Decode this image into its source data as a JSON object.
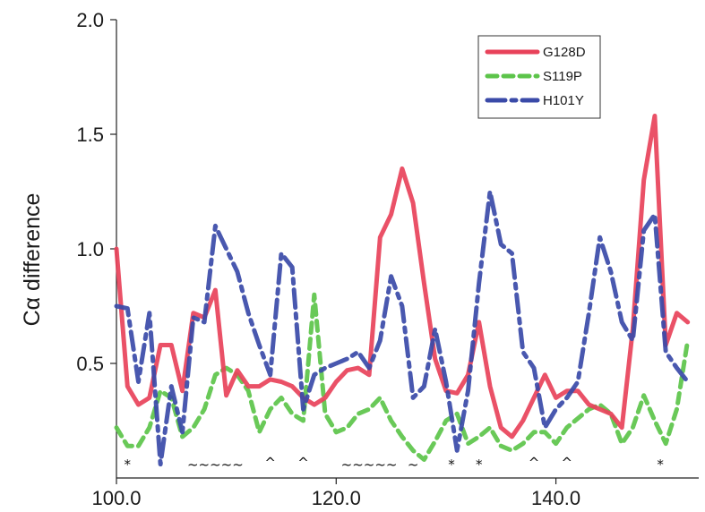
{
  "chart_data": {
    "type": "line",
    "title": "",
    "xlabel": "",
    "ylabel": "Cα difference",
    "xlim": [
      100,
      153
    ],
    "ylim": [
      0,
      2.0
    ],
    "xticks": [
      100,
      120,
      140
    ],
    "xtick_labels": [
      "100.0",
      "120.0",
      "140.0"
    ],
    "yticks": [
      0.5,
      1.0,
      1.5,
      2.0
    ],
    "ytick_labels": [
      "0.5",
      "1.0",
      "1.5",
      "2.0"
    ],
    "grid": false,
    "legend_position": "top-right",
    "x": [
      100,
      101,
      102,
      103,
      104,
      105,
      106,
      107,
      108,
      109,
      110,
      111,
      112,
      113,
      114,
      115,
      116,
      117,
      118,
      119,
      120,
      121,
      122,
      123,
      124,
      125,
      126,
      127,
      128,
      129,
      130,
      131,
      132,
      133,
      134,
      135,
      136,
      137,
      138,
      139,
      140,
      141,
      142,
      143,
      144,
      145,
      146,
      147,
      148,
      149,
      150,
      151,
      152
    ],
    "series": [
      {
        "name": "G128D",
        "color": "#e8425a",
        "dash": "solid",
        "values": [
          1.0,
          0.4,
          0.32,
          0.35,
          0.58,
          0.58,
          0.38,
          0.72,
          0.7,
          0.82,
          0.36,
          0.47,
          0.4,
          0.4,
          0.43,
          0.42,
          0.4,
          0.35,
          0.32,
          0.35,
          0.42,
          0.47,
          0.48,
          0.45,
          1.05,
          1.15,
          1.35,
          1.2,
          0.85,
          0.52,
          0.38,
          0.37,
          0.45,
          0.68,
          0.4,
          0.22,
          0.18,
          0.25,
          0.35,
          0.45,
          0.35,
          0.38,
          0.38,
          0.32,
          0.3,
          0.28,
          0.22,
          0.65,
          1.3,
          1.58,
          0.58,
          0.72,
          0.68
        ]
      },
      {
        "name": "S119P",
        "color": "#5cc44a",
        "dash": "dashed",
        "values": [
          0.22,
          0.14,
          0.14,
          0.22,
          0.38,
          0.35,
          0.18,
          0.22,
          0.3,
          0.45,
          0.48,
          0.45,
          0.38,
          0.2,
          0.3,
          0.35,
          0.28,
          0.25,
          0.8,
          0.28,
          0.2,
          0.22,
          0.28,
          0.3,
          0.35,
          0.25,
          0.18,
          0.12,
          0.08,
          0.16,
          0.25,
          0.28,
          0.15,
          0.18,
          0.22,
          0.14,
          0.12,
          0.15,
          0.2,
          0.2,
          0.15,
          0.22,
          0.26,
          0.3,
          0.32,
          0.28,
          0.15,
          0.22,
          0.36,
          0.25,
          0.15,
          0.3,
          0.6
        ]
      },
      {
        "name": "H101Y",
        "color": "#3a4aa8",
        "dash": "dashdot",
        "values": [
          0.75,
          0.74,
          0.42,
          0.72,
          0.06,
          0.4,
          0.2,
          0.7,
          0.68,
          1.1,
          1.0,
          0.9,
          0.72,
          0.58,
          0.45,
          0.98,
          0.92,
          0.3,
          0.45,
          0.48,
          0.5,
          0.52,
          0.55,
          0.48,
          0.6,
          0.88,
          0.75,
          0.35,
          0.4,
          0.65,
          0.42,
          0.12,
          0.38,
          0.85,
          1.25,
          1.02,
          0.98,
          0.55,
          0.48,
          0.22,
          0.3,
          0.35,
          0.42,
          0.72,
          1.05,
          0.9,
          0.68,
          0.6,
          1.08,
          1.15,
          0.55,
          0.48,
          0.42
        ]
      }
    ],
    "annotations": [
      {
        "x": 101,
        "text": "*"
      },
      {
        "x": 109,
        "text": "~~~~~"
      },
      {
        "x": 114,
        "text": "^"
      },
      {
        "x": 117,
        "text": "^"
      },
      {
        "x": 123,
        "text": "~~~~~"
      },
      {
        "x": 127,
        "text": "~"
      },
      {
        "x": 130.5,
        "text": "*"
      },
      {
        "x": 133,
        "text": "*"
      },
      {
        "x": 138,
        "text": "^"
      },
      {
        "x": 141,
        "text": "^"
      },
      {
        "x": 149.5,
        "text": "*"
      }
    ]
  }
}
